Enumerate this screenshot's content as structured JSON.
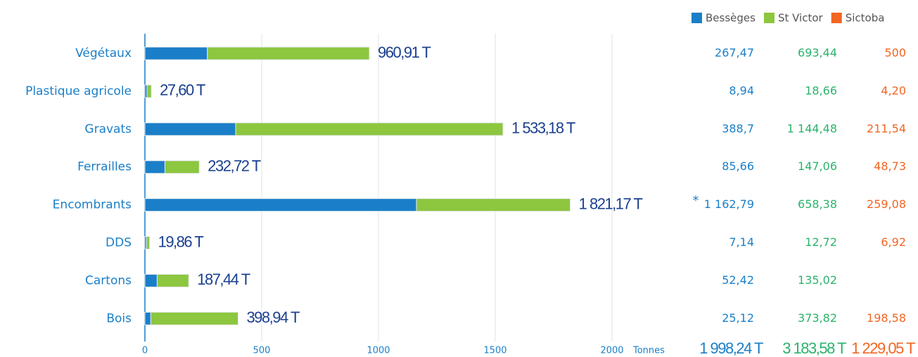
{
  "chart_data": {
    "type": "bar",
    "categories": [
      "Végétaux",
      "Plastique agricole",
      "Gravats",
      "Ferrailles",
      "Encombrants",
      "DDS",
      "Cartons",
      "Bois"
    ],
    "series": [
      {
        "name": "Bessèges",
        "color": "#1a7fc8",
        "values": [
          267.47,
          8.94,
          388.7,
          85.66,
          1162.79,
          7.14,
          52.42,
          25.12
        ],
        "value_labels": [
          "267,47",
          "8,94",
          "388,7",
          "85,66",
          "1 162,79",
          "7,14",
          "52,42",
          "25,12"
        ],
        "total": 1998.24,
        "total_label": "1 998,24 T"
      },
      {
        "name": "St Victor",
        "color": "#8dc63f",
        "text_color": "#2bb36b",
        "values": [
          693.44,
          18.66,
          1144.48,
          147.06,
          658.38,
          12.72,
          135.02,
          373.82
        ],
        "value_labels": [
          "693,44",
          "18,66",
          "1 144,48",
          "147,06",
          "658,38",
          "12,72",
          "135,02",
          "373,82"
        ],
        "total": 3183.58,
        "total_label": "3 183,58 T"
      },
      {
        "name": "Sictoba",
        "color": "#f26522",
        "values": [
          500,
          4.2,
          211.54,
          48.73,
          259.08,
          6.92,
          null,
          198.58
        ],
        "value_labels": [
          "500",
          "4,20",
          "211,54",
          "48,73",
          "259,08",
          "6,92",
          null,
          "198,58"
        ],
        "total": 1229.05,
        "total_label": "1 229,05 T"
      }
    ],
    "totals": [
      960.91,
      27.6,
      1533.18,
      232.72,
      1821.17,
      19.86,
      187.44,
      398.94
    ],
    "total_labels": [
      "960,91 T",
      "27,60 T",
      "1 533,18 T",
      "232,72 T",
      "1 821,17 T",
      "19,86 T",
      "187,44 T",
      "398,94 T"
    ],
    "bar_series": [
      0,
      1
    ],
    "annotation": "*",
    "xlabel": "Tonnes",
    "xlim": [
      0,
      2000
    ],
    "xticks": [
      0,
      500,
      1000,
      1500,
      2000
    ],
    "grid": true
  }
}
